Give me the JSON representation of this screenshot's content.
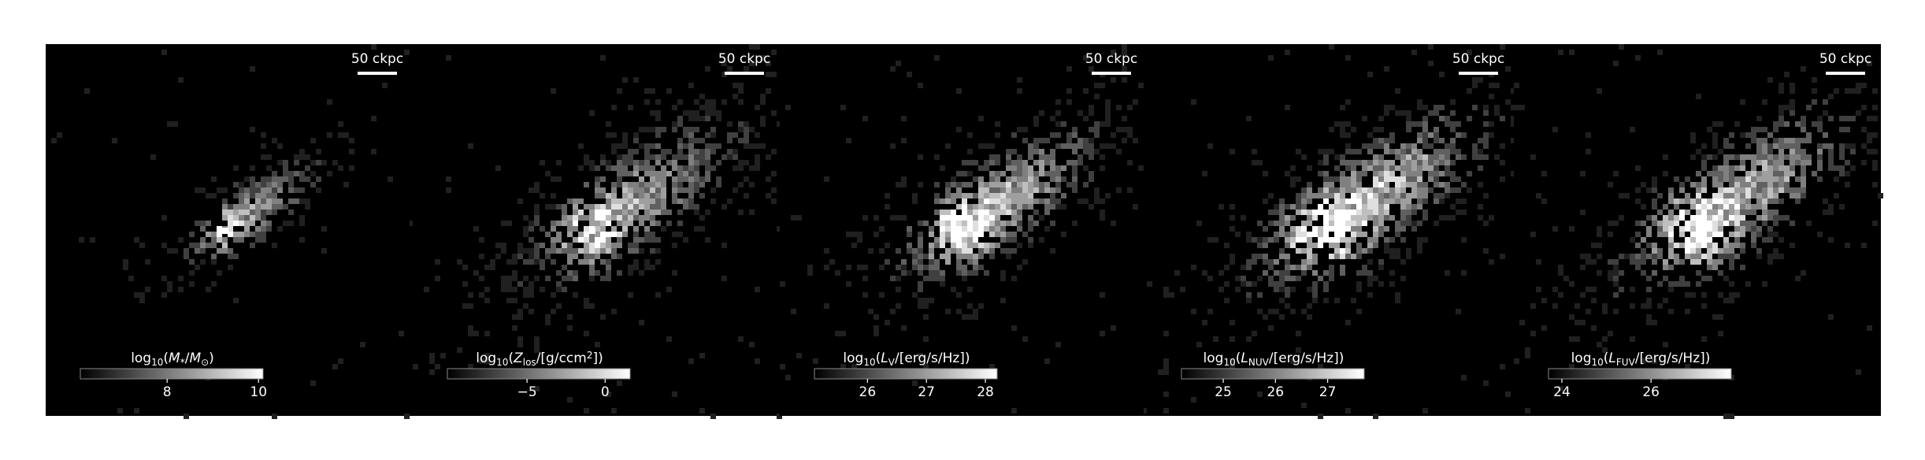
{
  "chart_data": [
    {
      "type": "image",
      "scalebar": "50 ckpc",
      "colorbar_label": [
        {
          "text": "log"
        },
        {
          "text": "10",
          "sub": true
        },
        {
          "text": "("
        },
        {
          "text": "M"
        },
        {
          "text": "*",
          "sub": true
        },
        {
          "text": "/"
        },
        {
          "text": "M"
        },
        {
          "text": "⊙",
          "sub": true
        },
        {
          "text": ")"
        }
      ],
      "clim": [
        6.1,
        10.1
      ],
      "cticks": [
        8,
        10
      ]
    },
    {
      "type": "image",
      "scalebar": "50 ckpc",
      "colorbar_label": [
        {
          "text": "log"
        },
        {
          "text": "10",
          "sub": true
        },
        {
          "text": "("
        },
        {
          "text": "Z"
        },
        {
          "text": "los",
          "sub": true
        },
        {
          "text": "/[g/ccm"
        },
        {
          "text": "2",
          "sup": true
        },
        {
          "text": "])"
        }
      ],
      "clim": [
        -10.1,
        1.6
      ],
      "cticks": [
        {
          "value": -5,
          "label": "−5"
        },
        0
      ]
    },
    {
      "type": "image",
      "scalebar": "50 ckpc",
      "colorbar_label": [
        {
          "text": "log"
        },
        {
          "text": "10",
          "sub": true
        },
        {
          "text": "("
        },
        {
          "text": "L"
        },
        {
          "text": "V",
          "sub": true
        },
        {
          "text": "/[erg/s/Hz])"
        }
      ],
      "clim": [
        25.1,
        28.2
      ],
      "cticks": [
        26,
        27,
        28
      ]
    },
    {
      "type": "image",
      "scalebar": "50 ckpc",
      "colorbar_label": [
        {
          "text": "log"
        },
        {
          "text": "10",
          "sub": true
        },
        {
          "text": "("
        },
        {
          "text": "L"
        },
        {
          "text": "NUV",
          "sub": true
        },
        {
          "text": "/[erg/s/Hz])"
        }
      ],
      "clim": [
        24.2,
        27.7
      ],
      "cticks": [
        25,
        26,
        27
      ]
    },
    {
      "type": "image",
      "scalebar": "50 ckpc",
      "colorbar_label": [
        {
          "text": "log"
        },
        {
          "text": "10",
          "sub": true
        },
        {
          "text": "("
        },
        {
          "text": "L"
        },
        {
          "text": "FUV",
          "sub": true
        },
        {
          "text": "/[erg/s/Hz])"
        }
      ],
      "clim": [
        23.7,
        27.8
      ],
      "cticks": [
        24,
        26
      ]
    }
  ]
}
